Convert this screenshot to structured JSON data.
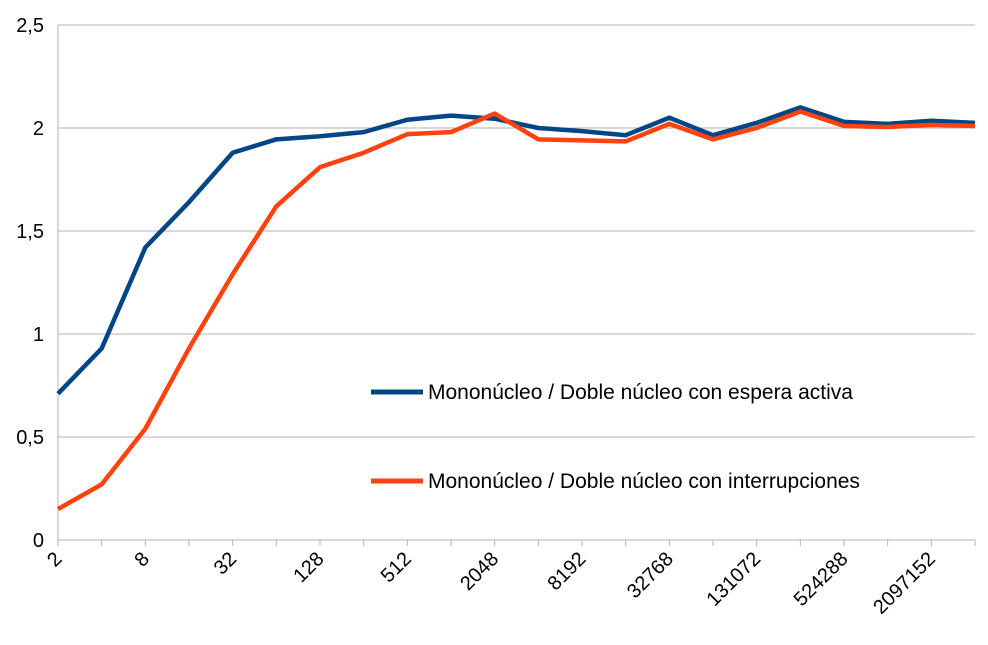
{
  "chart_data": {
    "type": "line",
    "title": "",
    "xlabel": "",
    "ylabel": "",
    "ylim": [
      0,
      2.5
    ],
    "y_ticks": [
      "0",
      "0,5",
      "1",
      "1,5",
      "2",
      "2,5"
    ],
    "y_tick_values": [
      0,
      0.5,
      1,
      1.5,
      2,
      2.5
    ],
    "categories": [
      "2",
      "4",
      "8",
      "16",
      "32",
      "64",
      "128",
      "256",
      "512",
      "1024",
      "2048",
      "4096",
      "8192",
      "16384",
      "32768",
      "65536",
      "131072",
      "262144",
      "524288",
      "1048576",
      "2097152",
      "4194304"
    ],
    "labeled_categories": [
      "2",
      "8",
      "32",
      "128",
      "512",
      "2048",
      "8192",
      "32768",
      "131072",
      "524288",
      "2097152"
    ],
    "grid": true,
    "legend_position": "center-right",
    "series": [
      {
        "name": "Mononúcleo / Doble núcleo con espera activa",
        "color": "#004586",
        "values": [
          0.71,
          0.93,
          1.42,
          1.64,
          1.88,
          1.945,
          1.96,
          1.98,
          2.04,
          2.06,
          2.045,
          2.0,
          1.985,
          1.965,
          2.05,
          1.965,
          2.025,
          2.1,
          2.03,
          2.02,
          2.035,
          2.025
        ]
      },
      {
        "name": "Mononúcleo / Doble núcleo con interrupciones",
        "color": "#ff420e",
        "values": [
          0.15,
          0.27,
          0.54,
          0.93,
          1.29,
          1.62,
          1.81,
          1.88,
          1.97,
          1.98,
          2.07,
          1.945,
          1.94,
          1.935,
          2.02,
          1.945,
          2.0,
          2.08,
          2.01,
          2.005,
          2.015,
          2.01
        ]
      }
    ]
  }
}
